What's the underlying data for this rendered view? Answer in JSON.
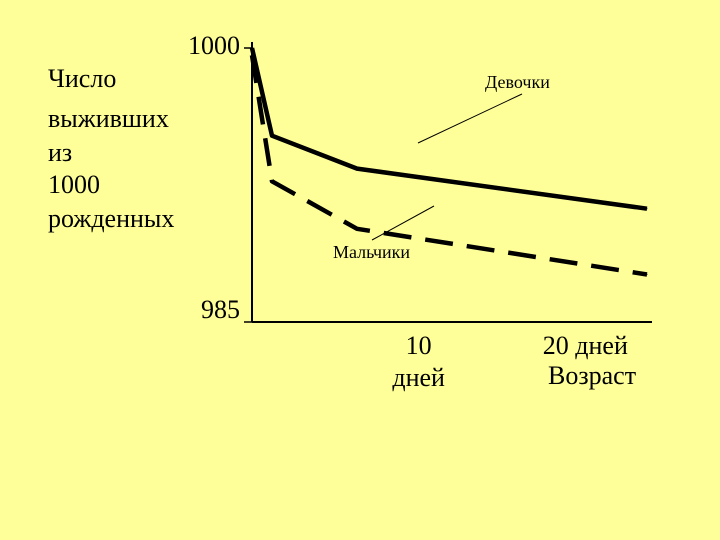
{
  "background_color": "#FFFF99",
  "chart_data": {
    "type": "line",
    "title": "",
    "ylabel": [
      "Число",
      "выживших",
      "из",
      "1000",
      "рожденных"
    ],
    "xlabel": "Возраст",
    "x_ticks": [
      {
        "value": 10,
        "lines": [
          "10",
          "дней"
        ]
      },
      {
        "value": 20,
        "lines": [
          "20 дней"
        ]
      }
    ],
    "y_ticks": [
      {
        "value": 1000,
        "label": "1000"
      },
      {
        "value": 985,
        "label": "985"
      }
    ],
    "xlim": [
      0,
      24
    ],
    "ylim": [
      985,
      1000
    ],
    "grid": false,
    "series": [
      {
        "name": "Девочки",
        "style": "solid",
        "points": [
          [
            0,
            1000
          ],
          [
            1.2,
            995.2
          ],
          [
            6.3,
            993.4
          ],
          [
            23.7,
            991.2
          ]
        ]
      },
      {
        "name": "Мальчики",
        "style": "dashed",
        "points": [
          [
            0,
            999.6
          ],
          [
            1.2,
            992.7
          ],
          [
            6.3,
            990.1
          ],
          [
            23.7,
            987.6
          ]
        ]
      }
    ]
  }
}
